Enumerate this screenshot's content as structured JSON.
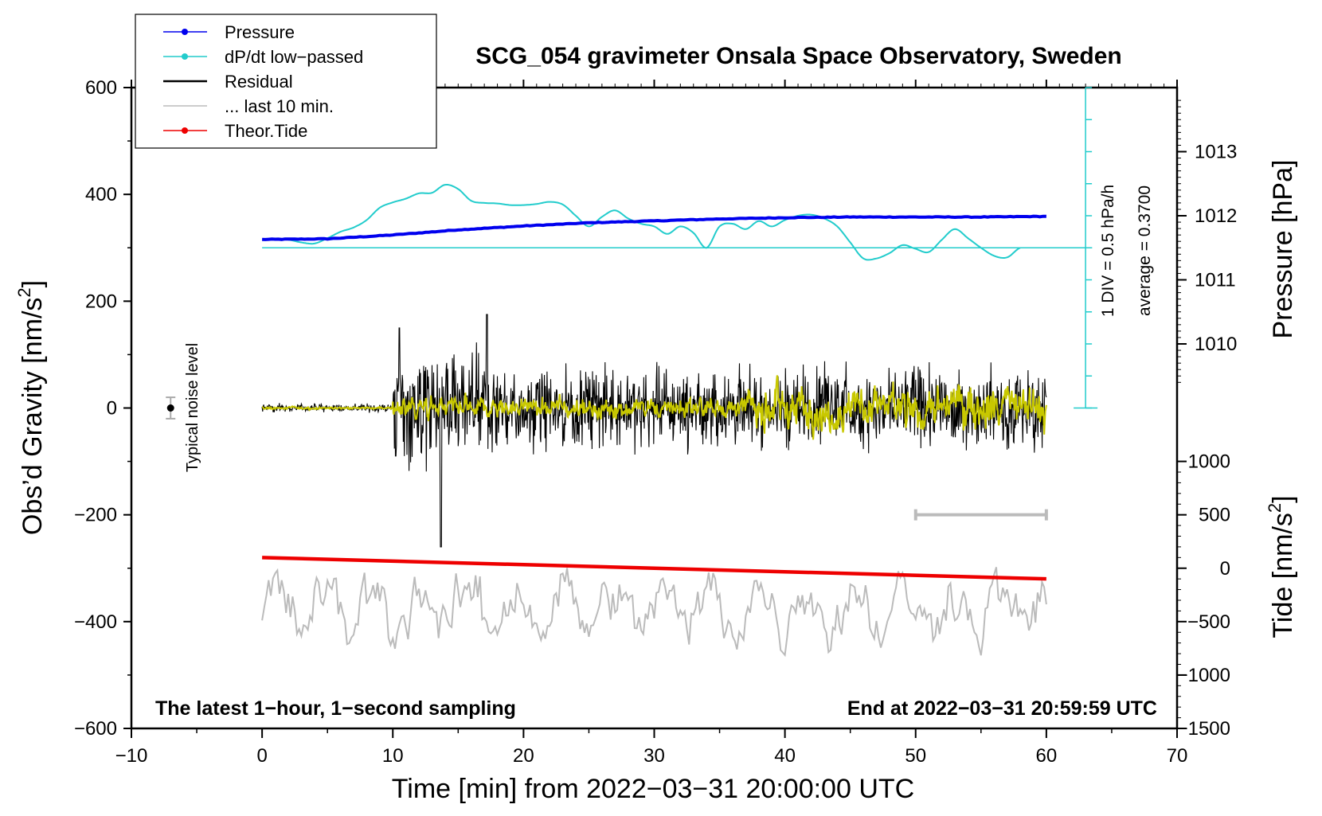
{
  "chart_data": {
    "type": "line",
    "title": "SCG_054 gravimeter Onsala Space Observatory, Sweden",
    "xlabel": "Time [min] from 2022−03−31 20:00:00 UTC",
    "ylabel_left_main": "Obs’d Gravity [nm/s",
    "ylabel_left_sup": "2",
    "ylabel_left_end": "]",
    "ylabel_right_pressure": "Pressure [hPa]",
    "ylabel_right_tide_main": "Tide [nm/s",
    "ylabel_right_tide_sup": "2",
    "ylabel_right_tide_end": "]",
    "xlim": [
      -10,
      70
    ],
    "ylim": [
      -600,
      600
    ],
    "x_ticks": [
      "−10",
      "0",
      "10",
      "20",
      "30",
      "40",
      "50",
      "60",
      "70"
    ],
    "x_tick_values": [
      -10,
      0,
      10,
      20,
      30,
      40,
      50,
      60,
      70
    ],
    "y_ticks": [
      "600",
      "400",
      "200",
      "0",
      "−200",
      "−400",
      "−600"
    ],
    "y_tick_values": [
      600,
      400,
      200,
      0,
      -200,
      -400,
      -600
    ],
    "pressure_axis": {
      "ticks": [
        "1013",
        "1012",
        "1011",
        "1010"
      ],
      "tick_values": [
        1013,
        1012,
        1011,
        1010
      ],
      "range_note": "maps 1010 hPa at y=120 and 1013 hPa at y=480 (gravity units)"
    },
    "tide_axis": {
      "ticks": [
        "1000",
        "500",
        "0",
        "−500",
        "−1000",
        "−1500"
      ],
      "tick_values": [
        1000,
        500,
        0,
        -500,
        -1000,
        -1500
      ]
    },
    "legend": {
      "placement": "top-left",
      "entries": [
        {
          "label": "Pressure",
          "color": "#0000ee",
          "marker": true
        },
        {
          "label": "dP/dt low−passed",
          "color": "#22cccc",
          "marker": true
        },
        {
          "label": "Residual",
          "color": "#000000",
          "marker": false
        },
        {
          "label": "... last 10 min.",
          "color": "#bbbbbb",
          "marker": false
        },
        {
          "label": "Theor.Tide",
          "color": "#ee0000",
          "marker": true
        }
      ]
    },
    "annotations": {
      "noise": "Typical noise level",
      "dpdt_scale": "1 DIV = 0.5 hPa/h",
      "dpdt_average": "average = 0.3700",
      "bottom_left": "The latest 1−hour, 1−second sampling",
      "bottom_right": "End at 2022−03−31 20:59:59 UTC"
    },
    "series": [
      {
        "name": "Pressure",
        "axis": "pressure",
        "color": "#0000ee",
        "x": [
          0,
          5,
          10,
          15,
          20,
          25,
          30,
          35,
          40,
          45,
          50,
          55,
          60
        ],
        "values": [
          1011.63,
          1011.64,
          1011.7,
          1011.78,
          1011.84,
          1011.89,
          1011.92,
          1011.95,
          1011.97,
          1011.98,
          1011.98,
          1011.98,
          1011.99
        ]
      },
      {
        "name": "dP/dt low−passed",
        "axis": "gravity-scaled",
        "color": "#22cccc",
        "baseline": 300,
        "x": [
          2,
          3,
          4,
          5,
          6,
          7,
          8,
          9,
          10,
          11,
          12,
          13,
          14,
          15,
          16,
          17,
          18,
          19,
          20,
          21,
          22,
          23,
          24,
          25,
          26,
          27,
          28,
          29,
          30,
          31,
          32,
          33,
          34,
          35,
          36,
          37,
          38,
          39,
          40,
          41,
          42,
          43,
          44,
          45,
          46,
          47,
          48,
          49,
          50,
          51,
          52,
          53,
          54,
          55,
          56,
          57,
          58
        ],
        "values": [
          315,
          310,
          308,
          318,
          330,
          338,
          352,
          375,
          385,
          392,
          402,
          403,
          418,
          410,
          388,
          384,
          383,
          380,
          380,
          382,
          386,
          381,
          360,
          340,
          358,
          370,
          355,
          345,
          340,
          326,
          340,
          328,
          300,
          340,
          345,
          335,
          350,
          340,
          352,
          360,
          362,
          355,
          340,
          310,
          280,
          280,
          290,
          305,
          298,
          292,
          315,
          335,
          318,
          300,
          285,
          282,
          300
        ]
      },
      {
        "name": "Residual",
        "axis": "gravity",
        "color": "#000000",
        "x_range": [
          0,
          60
        ],
        "description_values": {
          "quiet_amplitude_0_10min": 12,
          "amplitude_10_60min": 120,
          "max": 175,
          "min": -260
        }
      },
      {
        "name": "Residual low−passed",
        "axis": "gravity",
        "color": "#c8c800",
        "x_range": [
          0,
          60
        ]
      },
      {
        "name": "... last 10 min.",
        "axis": "gravity",
        "color": "#bbbbbb",
        "x_range": [
          0,
          60
        ],
        "description_values": {
          "center": -375,
          "max": -245,
          "min": -510
        }
      },
      {
        "name": "Theor.Tide",
        "axis": "tide",
        "color": "#ee0000",
        "x": [
          0,
          60
        ],
        "values": [
          100,
          -100
        ]
      }
    ],
    "noise_bar": {
      "x": -7,
      "center": 0,
      "halfwidth": 20
    },
    "last10_bracket": {
      "x_start": 50,
      "x_end": 60,
      "y": -200
    }
  }
}
